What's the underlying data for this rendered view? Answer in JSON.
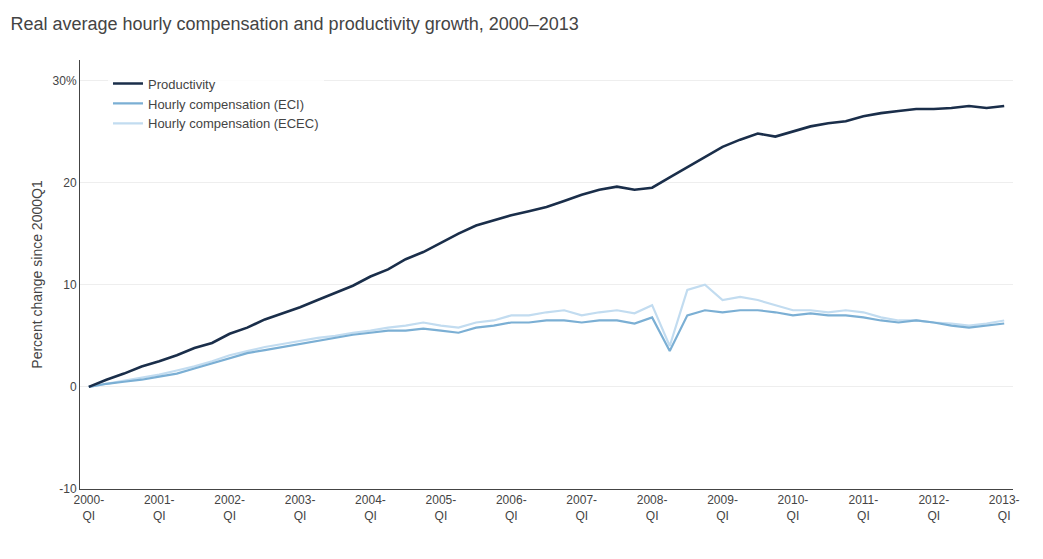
{
  "chart_data": {
    "type": "line",
    "title": "Real average hourly compensation and productivity growth, 2000–2013",
    "y_label": "Percent change since 2000Q1",
    "categories": [
      "2000-\nQI",
      null,
      null,
      null,
      "2001-\nQI",
      null,
      null,
      null,
      "2002-\nQI",
      null,
      null,
      null,
      "2003-\nQI",
      null,
      null,
      null,
      "2004-\nQI",
      null,
      null,
      null,
      "2005-\nQI",
      null,
      null,
      null,
      "2006-\nQI",
      null,
      null,
      null,
      "2007-\nQI",
      null,
      null,
      null,
      "2008-\nQI",
      null,
      null,
      null,
      "2009-\nQI",
      null,
      null,
      null,
      "2010-\nQI",
      null,
      null,
      null,
      "2011-\nQI",
      null,
      null,
      null,
      "2012-\nQI",
      null,
      null,
      null,
      "2013-\nQI"
    ],
    "series": [
      {
        "name": "Productivity",
        "color": "#1a2e4a",
        "values": [
          0.0,
          0.7,
          1.3,
          2.0,
          2.5,
          3.1,
          3.8,
          4.3,
          5.2,
          5.8,
          6.6,
          7.2,
          7.8,
          8.5,
          9.2,
          9.9,
          10.8,
          11.5,
          12.5,
          13.2,
          14.1,
          15.0,
          15.8,
          16.3,
          16.8,
          17.2,
          17.6,
          18.2,
          18.8,
          19.3,
          19.6,
          19.3,
          19.5,
          20.5,
          21.5,
          22.5,
          23.5,
          24.2,
          24.8,
          24.5,
          25.0,
          25.5,
          25.8,
          26.0,
          26.5,
          26.8,
          27.0,
          27.2,
          27.2,
          27.3,
          27.5,
          27.3,
          27.5
        ]
      },
      {
        "name": "Hourly compensation (ECI)",
        "color": "#7bafd4",
        "values": [
          0.0,
          0.3,
          0.5,
          0.7,
          1.0,
          1.3,
          1.8,
          2.3,
          2.8,
          3.3,
          3.6,
          3.9,
          4.2,
          4.5,
          4.8,
          5.1,
          5.3,
          5.5,
          5.5,
          5.7,
          5.5,
          5.3,
          5.8,
          6.0,
          6.3,
          6.3,
          6.5,
          6.5,
          6.3,
          6.5,
          6.5,
          6.2,
          6.8,
          3.5,
          7.0,
          7.5,
          7.3,
          7.5,
          7.5,
          7.3,
          7.0,
          7.2,
          7.0,
          7.0,
          6.8,
          6.5,
          6.3,
          6.5,
          6.3,
          6.0,
          5.8,
          6.0,
          6.2
        ]
      },
      {
        "name": "Hourly compensation (ECEC)",
        "color": "#c2dcf0",
        "values": [
          0.0,
          0.3,
          0.6,
          0.9,
          1.2,
          1.6,
          2.0,
          2.5,
          3.1,
          3.5,
          3.9,
          4.2,
          4.5,
          4.8,
          5.0,
          5.3,
          5.5,
          5.8,
          6.0,
          6.3,
          6.0,
          5.8,
          6.3,
          6.5,
          7.0,
          7.0,
          7.3,
          7.5,
          7.0,
          7.3,
          7.5,
          7.2,
          8.0,
          4.0,
          9.5,
          10.0,
          8.5,
          8.8,
          8.5,
          8.0,
          7.5,
          7.5,
          7.3,
          7.5,
          7.3,
          6.8,
          6.5,
          6.5,
          6.3,
          6.2,
          6.0,
          6.2,
          6.5
        ]
      }
    ],
    "ylim": [
      -10,
      32
    ],
    "yticks": [
      -10,
      0,
      10,
      20,
      {
        "value": 30,
        "label": "30%"
      }
    ],
    "grid": true,
    "legend": "upper left"
  }
}
